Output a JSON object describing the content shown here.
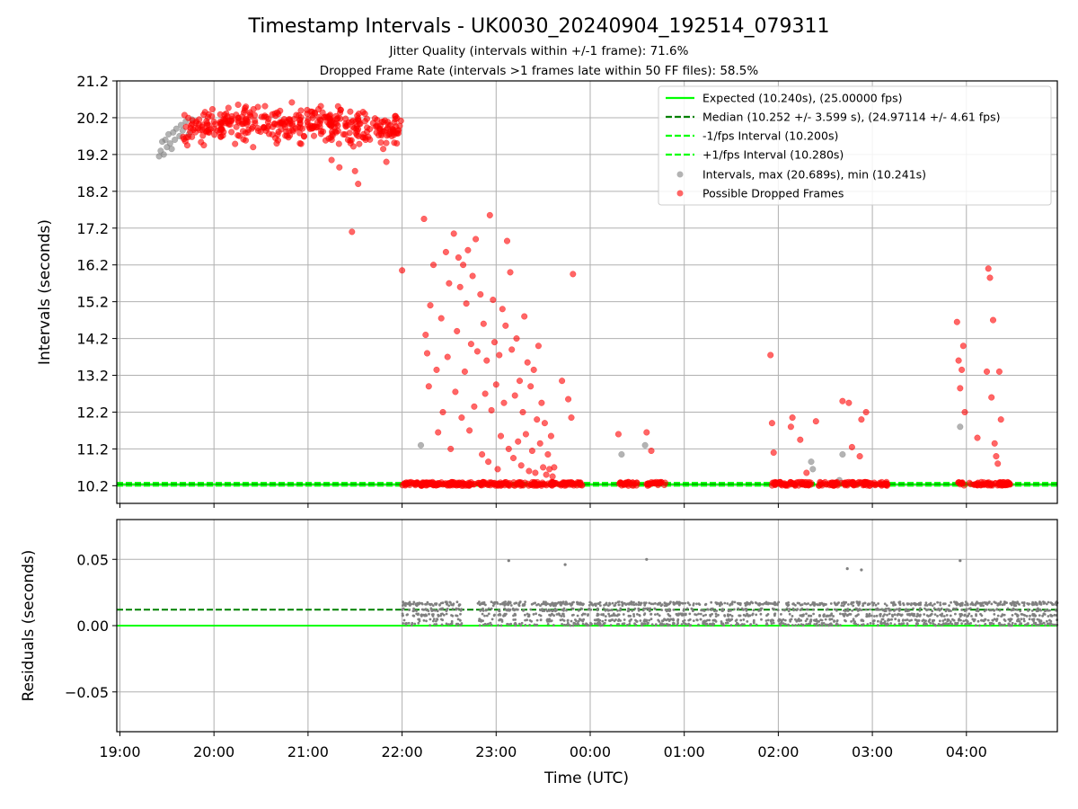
{
  "title": "Timestamp Intervals - UK0030_20240904_192514_079311",
  "subtitle1": "Jitter Quality (intervals within +/-1 frame): 71.6%",
  "subtitle2": "Dropped Frame Rate (intervals >1 frames late within 50 FF files): 58.5%",
  "colors": {
    "expected": "#00ff00",
    "median": "#008000",
    "bounds": "#00ff00",
    "intervals": "#808080",
    "dropped": "#ff0000",
    "residuals": "#808080",
    "grid": "#b0b0b0"
  },
  "chart_data": [
    {
      "type": "scatter",
      "panel": "top",
      "xlabel": "",
      "ylabel": "Intervals (seconds)",
      "xlim": [
        "18:58",
        "04:58"
      ],
      "ylim": [
        9.72,
        21.2
      ],
      "yticks": [
        10.2,
        11.2,
        12.2,
        13.2,
        14.2,
        15.2,
        16.2,
        17.2,
        18.2,
        19.2,
        20.2,
        21.2
      ],
      "ytick_labels": [
        "10.2",
        "11.2",
        "12.2",
        "13.2",
        "14.2",
        "15.2",
        "16.2",
        "17.2",
        "18.2",
        "19.2",
        "20.2",
        "21.2"
      ],
      "grid": true,
      "legend_position": "top-right",
      "legend": [
        "Expected (10.240s), (25.00000 fps)",
        "Median (10.252 +/- 3.599 s), (24.97114 +/- 4.61 fps)",
        "-1/fps Interval (10.200s)",
        "+1/fps Interval (10.280s)",
        "Intervals, max (20.689s), min (10.241s)",
        "Possible Dropped Frames"
      ],
      "reference_lines": {
        "expected": 10.24,
        "median": 10.252,
        "minus_1fps": 10.2,
        "plus_1fps": 10.28
      },
      "series": [
        {
          "name": "Intervals, max (20.689s), min (10.241s)",
          "points": [
            [
              "19:25",
              19.15
            ],
            [
              "19:26",
              19.3
            ],
            [
              "19:27",
              19.55
            ],
            [
              "19:28",
              19.2
            ],
            [
              "19:29",
              19.6
            ],
            [
              "19:30",
              19.4
            ],
            [
              "19:31",
              19.75
            ],
            [
              "19:32",
              19.5
            ],
            [
              "19:33",
              19.35
            ],
            [
              "19:34",
              19.8
            ],
            [
              "19:35",
              19.6
            ],
            [
              "19:36",
              19.9
            ],
            [
              "19:38",
              19.7
            ],
            [
              "19:39",
              20.0
            ],
            [
              "19:40",
              19.85
            ],
            [
              "19:42",
              20.1
            ],
            [
              "19:44",
              19.75
            ],
            [
              "19:46",
              20.15
            ],
            [
              "22:12",
              11.3
            ],
            [
              "00:20",
              11.05
            ],
            [
              "00:35",
              11.3
            ],
            [
              "02:21",
              10.85
            ],
            [
              "02:22",
              10.65
            ],
            [
              "02:39",
              10.35
            ],
            [
              "02:41",
              11.05
            ],
            [
              "03:56",
              11.8
            ]
          ]
        },
        {
          "name": "Possible Dropped Frames",
          "points": [
            [
              "22:00",
              16.05
            ],
            [
              "22:14",
              17.45
            ],
            [
              "22:15",
              14.3
            ],
            [
              "22:16",
              13.8
            ],
            [
              "22:17",
              12.9
            ],
            [
              "22:18",
              15.1
            ],
            [
              "22:20",
              16.2
            ],
            [
              "22:22",
              13.35
            ],
            [
              "22:23",
              11.65
            ],
            [
              "22:25",
              14.75
            ],
            [
              "22:26",
              12.2
            ],
            [
              "22:28",
              16.55
            ],
            [
              "22:29",
              13.7
            ],
            [
              "22:30",
              15.7
            ],
            [
              "22:31",
              11.2
            ],
            [
              "22:33",
              17.05
            ],
            [
              "22:34",
              12.75
            ],
            [
              "22:35",
              14.4
            ],
            [
              "22:36",
              16.4
            ],
            [
              "22:37",
              15.6
            ],
            [
              "22:38",
              12.05
            ],
            [
              "22:39",
              16.2
            ],
            [
              "22:40",
              13.3
            ],
            [
              "22:41",
              15.15
            ],
            [
              "22:42",
              16.6
            ],
            [
              "22:43",
              11.7
            ],
            [
              "22:44",
              14.05
            ],
            [
              "22:45",
              15.9
            ],
            [
              "22:46",
              12.35
            ],
            [
              "22:47",
              16.9
            ],
            [
              "22:48",
              13.85
            ],
            [
              "22:50",
              15.4
            ],
            [
              "22:51",
              11.05
            ],
            [
              "22:52",
              14.6
            ],
            [
              "22:53",
              12.7
            ],
            [
              "22:54",
              13.6
            ],
            [
              "22:55",
              10.85
            ],
            [
              "22:56",
              17.55
            ],
            [
              "22:57",
              12.25
            ],
            [
              "22:58",
              15.25
            ],
            [
              "22:59",
              14.1
            ],
            [
              "23:00",
              12.95
            ],
            [
              "23:01",
              10.65
            ],
            [
              "23:02",
              13.75
            ],
            [
              "23:03",
              11.55
            ],
            [
              "23:04",
              15.0
            ],
            [
              "23:05",
              12.45
            ],
            [
              "23:06",
              14.55
            ],
            [
              "23:07",
              16.85
            ],
            [
              "23:08",
              11.2
            ],
            [
              "23:09",
              16.0
            ],
            [
              "23:10",
              13.9
            ],
            [
              "23:11",
              10.95
            ],
            [
              "23:12",
              12.65
            ],
            [
              "23:13",
              14.2
            ],
            [
              "23:14",
              11.4
            ],
            [
              "23:15",
              13.05
            ],
            [
              "23:16",
              10.75
            ],
            [
              "23:17",
              12.2
            ],
            [
              "23:18",
              14.8
            ],
            [
              "23:19",
              11.6
            ],
            [
              "23:20",
              13.55
            ],
            [
              "23:21",
              10.6
            ],
            [
              "23:22",
              12.9
            ],
            [
              "23:23",
              11.15
            ],
            [
              "23:24",
              13.35
            ],
            [
              "23:25",
              10.55
            ],
            [
              "23:26",
              12.0
            ],
            [
              "23:27",
              14.0
            ],
            [
              "23:28",
              11.35
            ],
            [
              "23:29",
              12.45
            ],
            [
              "23:30",
              10.7
            ],
            [
              "23:31",
              11.9
            ],
            [
              "23:32",
              10.5
            ],
            [
              "23:33",
              11.05
            ],
            [
              "23:34",
              10.65
            ],
            [
              "23:35",
              11.55
            ],
            [
              "23:36",
              10.45
            ],
            [
              "23:37",
              10.7
            ],
            [
              "23:42",
              13.05
            ],
            [
              "23:46",
              12.55
            ],
            [
              "23:48",
              12.05
            ],
            [
              "23:49",
              15.95
            ],
            [
              "00:18",
              11.6
            ],
            [
              "00:36",
              11.65
            ],
            [
              "00:39",
              11.15
            ],
            [
              "01:55",
              13.75
            ],
            [
              "01:56",
              11.9
            ],
            [
              "01:57",
              11.1
            ],
            [
              "02:01",
              10.3
            ],
            [
              "02:08",
              11.8
            ],
            [
              "02:09",
              12.05
            ],
            [
              "02:14",
              11.45
            ],
            [
              "02:18",
              10.55
            ],
            [
              "02:24",
              11.95
            ],
            [
              "02:41",
              12.5
            ],
            [
              "02:45",
              12.45
            ],
            [
              "02:47",
              11.25
            ],
            [
              "02:52",
              11.0
            ],
            [
              "02:53",
              12.0
            ],
            [
              "02:56",
              12.2
            ],
            [
              "03:54",
              14.65
            ],
            [
              "03:55",
              13.6
            ],
            [
              "03:56",
              12.85
            ],
            [
              "03:57",
              13.35
            ],
            [
              "03:58",
              14.0
            ],
            [
              "03:59",
              12.2
            ],
            [
              "04:07",
              11.5
            ],
            [
              "04:13",
              13.3
            ],
            [
              "04:14",
              16.1
            ],
            [
              "04:15",
              15.85
            ],
            [
              "04:16",
              12.6
            ],
            [
              "04:17",
              14.7
            ],
            [
              "04:18",
              11.35
            ],
            [
              "04:19",
              11.0
            ],
            [
              "04:20",
              10.8
            ],
            [
              "04:21",
              13.3
            ],
            [
              "04:22",
              12.0
            ]
          ],
          "dense_bands": [
            {
              "x_range": [
                "19:40",
                "22:00"
              ],
              "y_range": [
                18.4,
                20.6
              ],
              "sparse_low": [
                [
                  "20:25",
                  19.4
                ],
                [
                  "20:40",
                  19.5
                ],
                [
                  "21:15",
                  19.05
                ],
                [
                  "21:20",
                  18.85
                ],
                [
                  "21:30",
                  18.75
                ],
                [
                  "21:32",
                  18.4
                ],
                [
                  "21:28",
                  17.1
                ],
                [
                  "21:50",
                  19.0
                ]
              ]
            },
            {
              "x_range": [
                "22:00",
                "23:56"
              ],
              "y_range": [
                10.2,
                10.3
              ]
            },
            {
              "x_range": [
                "00:18",
                "00:30"
              ],
              "y_range": [
                10.2,
                10.3
              ]
            },
            {
              "x_range": [
                "00:36",
                "00:48"
              ],
              "y_range": [
                10.2,
                10.3
              ]
            },
            {
              "x_range": [
                "01:56",
                "02:22"
              ],
              "y_range": [
                10.2,
                10.3
              ]
            },
            {
              "x_range": [
                "02:25",
                "02:38"
              ],
              "y_range": [
                10.2,
                10.3
              ]
            },
            {
              "x_range": [
                "02:40",
                "03:10"
              ],
              "y_range": [
                10.2,
                10.3
              ]
            },
            {
              "x_range": [
                "03:54",
                "04:28"
              ],
              "y_range": [
                10.2,
                10.3
              ]
            }
          ]
        }
      ]
    },
    {
      "type": "scatter",
      "panel": "bottom",
      "xlabel": "Time (UTC)",
      "ylabel": "Residuals (seconds)",
      "xlim": [
        "18:58",
        "04:58"
      ],
      "ylim": [
        -0.08,
        0.08
      ],
      "yticks": [
        -0.05,
        0.0,
        0.05
      ],
      "ytick_labels": [
        "−0.05",
        "0.00",
        "0.05"
      ],
      "xticks": [
        "19:00",
        "20:00",
        "21:00",
        "22:00",
        "23:00",
        "00:00",
        "01:00",
        "02:00",
        "03:00",
        "04:00"
      ],
      "grid": true,
      "reference_lines": {
        "expected": 0.0,
        "median": 0.012
      },
      "series": [
        {
          "name": "",
          "points": [
            [
              "23:08",
              0.049
            ],
            [
              "23:44",
              0.046
            ],
            [
              "00:36",
              0.05
            ],
            [
              "02:44",
              0.043
            ],
            [
              "02:53",
              0.042
            ],
            [
              "03:56",
              0.049
            ]
          ],
          "dense_bands": [
            {
              "x_range": [
                "22:00",
                "22:38"
              ],
              "y_range": [
                0.0,
                0.018
              ]
            },
            {
              "x_range": [
                "22:48",
                "04:58"
              ],
              "y_range": [
                0.0,
                0.018
              ]
            }
          ]
        }
      ]
    }
  ]
}
